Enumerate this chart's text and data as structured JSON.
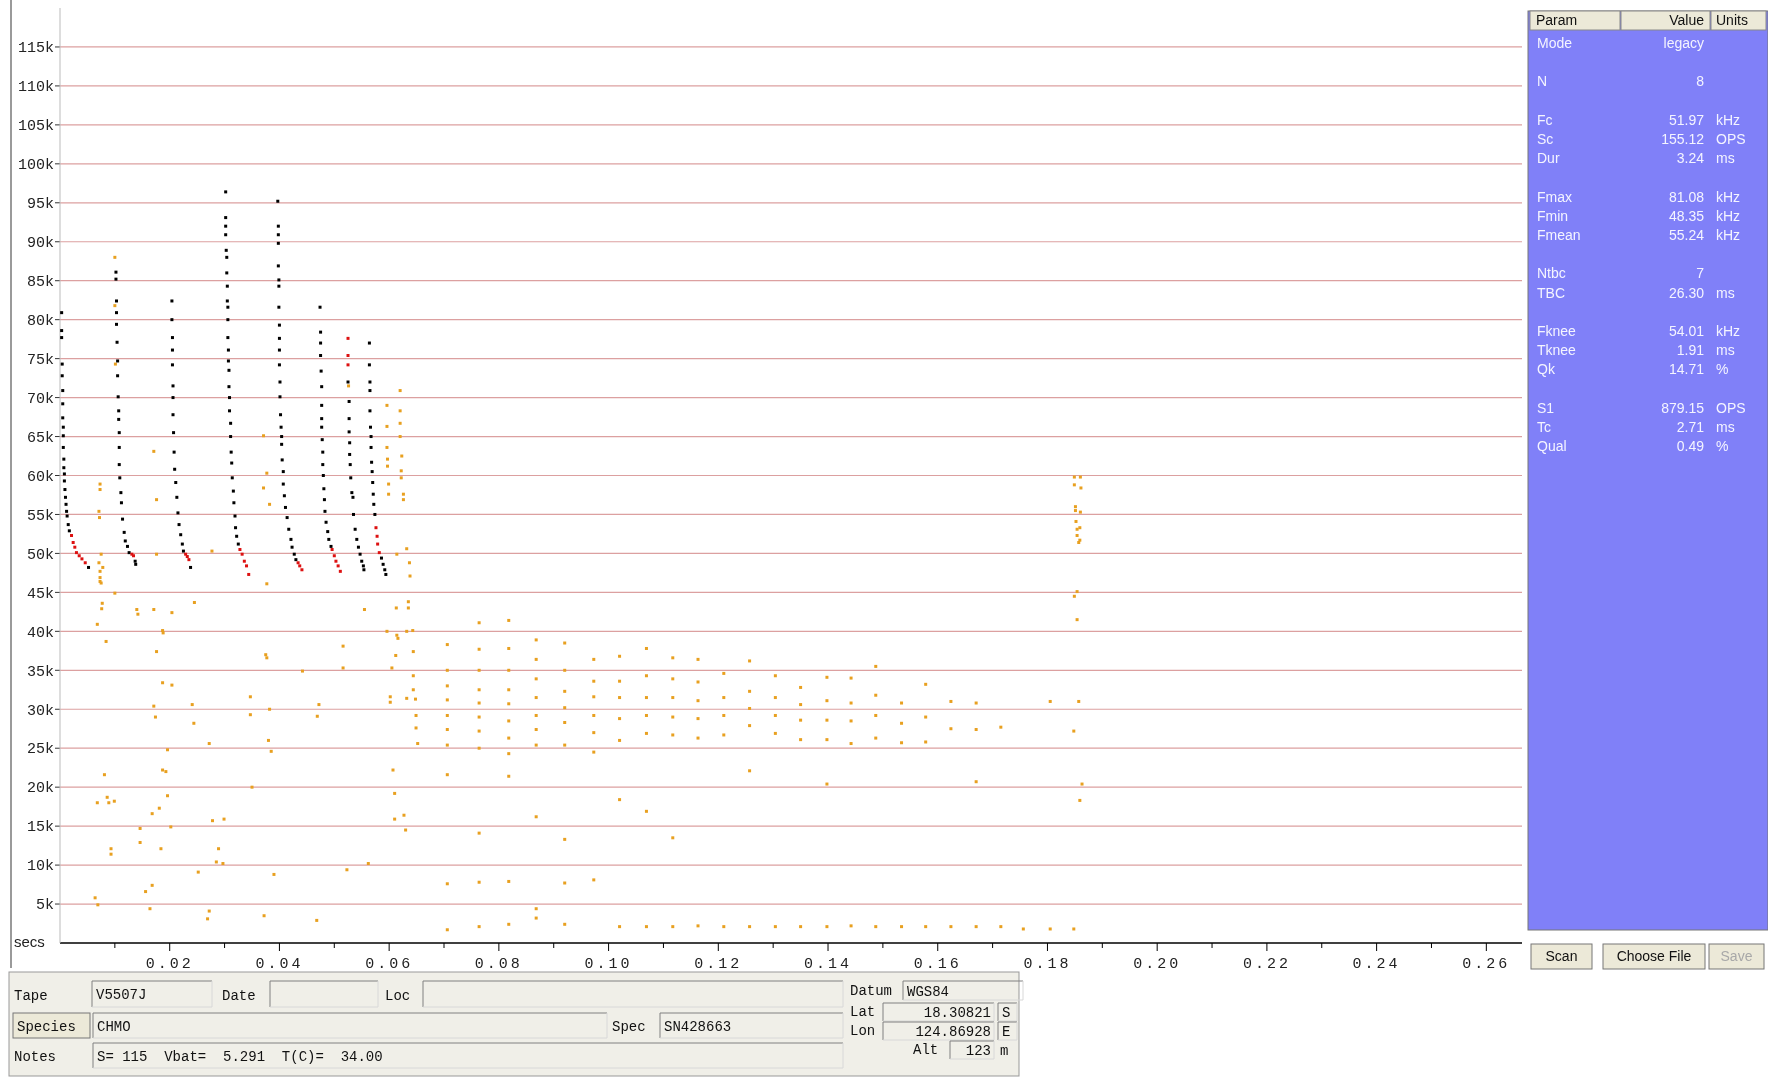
{
  "chart_data": [
    {
      "type": "scatter",
      "xlabel": "secs",
      "xlim": [
        0,
        0.2665
      ],
      "ylim": [
        0,
        120000
      ],
      "marker": "square",
      "grid": "y",
      "xticks": [
        {
          "value": 0.01,
          "label": null
        },
        {
          "value": 0.02,
          "label": "0.02"
        },
        {
          "value": 0.03,
          "label": null
        },
        {
          "value": 0.04,
          "label": "0.04"
        },
        {
          "value": 0.05,
          "label": null
        },
        {
          "value": 0.06,
          "label": "0.06"
        },
        {
          "value": 0.07,
          "label": null
        },
        {
          "value": 0.08,
          "label": "0.08"
        },
        {
          "value": 0.09,
          "label": null
        },
        {
          "value": 0.1,
          "label": "0.10"
        },
        {
          "value": 0.11,
          "label": null
        },
        {
          "value": 0.12,
          "label": "0.12"
        },
        {
          "value": 0.13,
          "label": null
        },
        {
          "value": 0.14,
          "label": "0.14"
        },
        {
          "value": 0.15,
          "label": null
        },
        {
          "value": 0.16,
          "label": "0.16"
        },
        {
          "value": 0.17,
          "label": null
        },
        {
          "value": 0.18,
          "label": "0.18"
        },
        {
          "value": 0.19,
          "label": null
        },
        {
          "value": 0.2,
          "label": "0.20"
        },
        {
          "value": 0.21,
          "label": null
        },
        {
          "value": 0.22,
          "label": "0.22"
        },
        {
          "value": 0.23,
          "label": null
        },
        {
          "value": 0.24,
          "label": "0.24"
        },
        {
          "value": 0.25,
          "label": null
        },
        {
          "value": 0.26,
          "label": "0.26"
        }
      ],
      "yticks": [
        {
          "value": 5000,
          "label": "5k"
        },
        {
          "value": 10000,
          "label": "10k"
        },
        {
          "value": 15000,
          "label": "15k"
        },
        {
          "value": 20000,
          "label": "20k"
        },
        {
          "value": 25000,
          "label": "25k"
        },
        {
          "value": 30000,
          "label": "30k"
        },
        {
          "value": 35000,
          "label": "35k"
        },
        {
          "value": 40000,
          "label": "40k"
        },
        {
          "value": 45000,
          "label": "45k"
        },
        {
          "value": 50000,
          "label": "50k"
        },
        {
          "value": 55000,
          "label": "55k"
        },
        {
          "value": 60000,
          "label": "60k"
        },
        {
          "value": 65000,
          "label": "65k"
        },
        {
          "value": 70000,
          "label": "70k"
        },
        {
          "value": 75000,
          "label": "75k"
        },
        {
          "value": 80000,
          "label": "80k"
        },
        {
          "value": 85000,
          "label": "85k"
        },
        {
          "value": 90000,
          "label": "90k"
        },
        {
          "value": 95000,
          "label": "95k"
        },
        {
          "value": 100000,
          "label": "100k"
        },
        {
          "value": 105000,
          "label": "105k"
        },
        {
          "value": 110000,
          "label": "110k"
        },
        {
          "value": 115000,
          "label": "115k"
        }
      ],
      "series": [
        {
          "color": "#e8a020",
          "x": [
            0.0073,
            0.0073,
            0.0071,
            0.0072,
            0.0075,
            0.0071,
            0.0078,
            0.0073,
            0.0075,
            0.01,
            0.0101,
            0.01,
            0.0171,
            0.0176,
            0.0176,
            0.0277,
            0.0371,
            0.0377,
            0.0371,
            0.0382,
            0.0377,
            0.0526,
            0.0596,
            0.0596,
            0.0596,
            0.0597,
            0.0597,
            0.0599,
            0.0599,
            0.062,
            0.062,
            0.062,
            0.062,
            0.0623,
            0.0622,
            0.0622,
            0.0626,
            0.0626,
            0.0632,
            0.0614,
            0.0637,
            0.0638,
            0.0073,
            0.0073,
            0.01,
            0.0245,
            0.0077,
            0.0076,
            0.014,
            0.0142,
            0.0171,
            0.0204,
            0.0068,
            0.0084,
            0.0187,
            0.0188,
            0.0176,
            0.0375,
            0.0377,
            0.0442,
            0.0555,
            0.0613,
            0.0635,
            0.0635,
            0.0596,
            0.0614,
            0.0616,
            0.0632,
            0.0643,
            0.0516,
            0.0612,
            0.0644,
            0.0516,
            0.0605,
            0.0644,
            0.0644,
            0.0602,
            0.0602,
            0.0632,
            0.0648,
            0.0649,
            0.0649,
            0.0652,
            0.0187,
            0.0204,
            0.0347,
            0.0347,
            0.0171,
            0.0174,
            0.0241,
            0.0244,
            0.0382,
            0.0472,
            0.0469,
            0.0272,
            0.0196,
            0.038,
            0.0385,
            0.0081,
            0.0187,
            0.0193,
            0.035,
            0.0607,
            0.061,
            0.0068,
            0.0086,
            0.0089,
            0.0099,
            0.0196,
            0.0181,
            0.0168,
            0.061,
            0.0627,
            0.063,
            0.0278,
            0.0299,
            0.0146,
            0.0202,
            0.0093,
            0.0093,
            0.0146,
            0.0184,
            0.0289,
            0.0285,
            0.0297,
            0.0562,
            0.0252,
            0.0523,
            0.039,
            0.0064,
            0.0069,
            0.0156,
            0.0168,
            0.0164,
            0.0272,
            0.0269,
            0.0372,
            0.0468,
            0.0706,
            0.0706,
            0.0706,
            0.0706,
            0.0706,
            0.0706,
            0.0706,
            0.0706,
            0.0706,
            0.0706,
            0.0764,
            0.0764,
            0.0764,
            0.0764,
            0.0764,
            0.0764,
            0.0764,
            0.0764,
            0.0764,
            0.0764,
            0.0764,
            0.0818,
            0.0818,
            0.0818,
            0.0818,
            0.0818,
            0.0818,
            0.0818,
            0.0818,
            0.0818,
            0.0818,
            0.0818,
            0.0868,
            0.0868,
            0.0868,
            0.0868,
            0.0868,
            0.0868,
            0.0868,
            0.0868,
            0.0868,
            0.0868,
            0.092,
            0.092,
            0.092,
            0.092,
            0.092,
            0.092,
            0.092,
            0.092,
            0.092,
            0.0973,
            0.0973,
            0.0973,
            0.0973,
            0.0973,
            0.0973,
            0.0973,
            0.102,
            0.102,
            0.102,
            0.102,
            0.102,
            0.102,
            0.102,
            0.1069,
            0.1069,
            0.1069,
            0.1069,
            0.1069,
            0.1069,
            0.1069,
            0.1117,
            0.1117,
            0.1117,
            0.1117,
            0.1117,
            0.1117,
            0.1117,
            0.1163,
            0.1163,
            0.1163,
            0.1163,
            0.1163,
            0.1163,
            0.121,
            0.121,
            0.121,
            0.121,
            0.121,
            0.1257,
            0.1257,
            0.1257,
            0.1257,
            0.1257,
            0.1257,
            0.1304,
            0.1304,
            0.1304,
            0.1304,
            0.1304,
            0.135,
            0.135,
            0.135,
            0.135,
            0.135,
            0.1398,
            0.1398,
            0.1398,
            0.1398,
            0.1398,
            0.1398,
            0.1442,
            0.1442,
            0.1442,
            0.1442,
            0.1442,
            0.1487,
            0.1487,
            0.1487,
            0.1487,
            0.1487,
            0.1534,
            0.1534,
            0.1534,
            0.1534,
            0.1578,
            0.1578,
            0.1578,
            0.1578,
            0.1624,
            0.1624,
            0.1624,
            0.167,
            0.167,
            0.167,
            0.167,
            0.1715,
            0.1715,
            0.1849,
            0.1849,
            0.1851,
            0.1851,
            0.1852,
            0.1854,
            0.1854,
            0.1857,
            0.186,
            0.1861,
            0.186,
            0.1859,
            0.1859,
            0.1854,
            0.1849,
            0.1854,
            0.1857,
            0.1805,
            0.1848,
            0.1863,
            0.1859,
            0.1805,
            0.1848,
            0.1756
          ],
          "values": [
            58900,
            58200,
            55400,
            54600,
            49900,
            48800,
            48200,
            46900,
            46200,
            88000,
            74300,
            81800,
            63100,
            56900,
            49900,
            50300,
            65100,
            60300,
            58400,
            56300,
            46100,
            71500,
            69000,
            66300,
            63600,
            62100,
            61200,
            58900,
            57600,
            70900,
            68300,
            66700,
            65000,
            62500,
            60600,
            59700,
            57600,
            56900,
            50600,
            49900,
            48800,
            47100,
            47700,
            46400,
            44900,
            43700,
            43600,
            42900,
            42800,
            42200,
            42800,
            42400,
            40900,
            38700,
            40100,
            39800,
            37400,
            37000,
            36600,
            34900,
            42800,
            43000,
            43800,
            43000,
            40000,
            39500,
            39100,
            40000,
            40100,
            38100,
            36900,
            37400,
            35300,
            35300,
            34300,
            32500,
            31600,
            30900,
            31400,
            31300,
            29200,
            27600,
            25600,
            33400,
            33100,
            31600,
            29300,
            30400,
            29000,
            30600,
            28200,
            30000,
            30600,
            29100,
            25600,
            24800,
            26000,
            24600,
            21600,
            22200,
            22000,
            20000,
            22200,
            19200,
            18000,
            18700,
            18000,
            18200,
            18900,
            17300,
            16600,
            15900,
            16400,
            14500,
            15700,
            15900,
            14700,
            14900,
            12100,
            11400,
            12900,
            12100,
            12100,
            10400,
            10200,
            10200,
            9100,
            9400,
            8800,
            5800,
            4900,
            6600,
            7400,
            4400,
            4100,
            3100,
            3500,
            2900,
            38300,
            35000,
            33000,
            31200,
            29200,
            27400,
            25400,
            21600,
            7600,
            1700,
            41100,
            37700,
            35000,
            32500,
            30800,
            29000,
            27200,
            25000,
            14100,
            7800,
            2100,
            41400,
            37800,
            35000,
            32500,
            30700,
            28500,
            26300,
            24300,
            21400,
            7900,
            2400,
            38900,
            36400,
            33900,
            31500,
            29200,
            27400,
            25400,
            16200,
            4400,
            3200,
            38500,
            35000,
            32300,
            30200,
            28300,
            25400,
            13300,
            7700,
            2400,
            36400,
            33600,
            31600,
            29200,
            27000,
            24500,
            8100,
            36800,
            33600,
            31500,
            28800,
            26000,
            18400,
            2100,
            37800,
            34300,
            31500,
            29200,
            26900,
            16900,
            2100,
            36600,
            33900,
            31500,
            29000,
            26700,
            13500,
            2100,
            36400,
            33500,
            31100,
            28800,
            26300,
            2200,
            34600,
            31500,
            29200,
            26700,
            2100,
            36200,
            32300,
            30100,
            27900,
            22100,
            2100,
            34300,
            31500,
            29200,
            26900,
            2100,
            32800,
            30600,
            28600,
            26100,
            2100,
            34100,
            31100,
            28600,
            26100,
            20400,
            2100,
            34000,
            30800,
            28500,
            25600,
            2200,
            35500,
            31800,
            29200,
            26300,
            2100,
            30800,
            28200,
            25700,
            2100,
            33200,
            29000,
            25800,
            2100,
            31000,
            27500,
            2100,
            30800,
            27400,
            20700,
            2100,
            27700,
            2100,
            59800,
            58800,
            56000,
            55500,
            54100,
            53100,
            52300,
            51400,
            59800,
            58400,
            55300,
            53300,
            51700,
            45100,
            44500,
            41500,
            31000,
            31000,
            27200,
            20400,
            18300,
            1800,
            1800,
            1800
          ]
        },
        {
          "color": "#000000",
          "x": [
            0.0003,
            0.0003,
            0.0003,
            0.0004,
            0.0004,
            0.0005,
            0.0005,
            0.0005,
            0.0006,
            0.0006,
            0.0006,
            0.0007,
            0.0007,
            0.0008,
            0.0008,
            0.0009,
            0.001,
            0.0011,
            0.0012,
            0.0013,
            0.0015,
            0.0017,
            0.0052,
            0.0102,
            0.0102,
            0.0103,
            0.0103,
            0.0103,
            0.0104,
            0.0105,
            0.0105,
            0.0106,
            0.0107,
            0.0107,
            0.0108,
            0.0108,
            0.0108,
            0.0109,
            0.0111,
            0.0112,
            0.0114,
            0.0117,
            0.0119,
            0.0123,
            0.0126,
            0.0137,
            0.0138,
            0.0204,
            0.0204,
            0.0205,
            0.0205,
            0.0205,
            0.0206,
            0.0206,
            0.0206,
            0.0207,
            0.0208,
            0.0209,
            0.0211,
            0.0213,
            0.0215,
            0.0217,
            0.022,
            0.0223,
            0.0225,
            0.0238,
            0.0302,
            0.0302,
            0.0302,
            0.0302,
            0.0303,
            0.0304,
            0.0304,
            0.0305,
            0.0305,
            0.0306,
            0.0306,
            0.0306,
            0.0307,
            0.0307,
            0.0308,
            0.0308,
            0.0309,
            0.0309,
            0.0311,
            0.0311,
            0.0312,
            0.0313,
            0.0314,
            0.0316,
            0.0317,
            0.0319,
            0.032,
            0.0322,
            0.0325,
            0.0397,
            0.0398,
            0.0398,
            0.0398,
            0.0398,
            0.0399,
            0.0399,
            0.0399,
            0.04,
            0.04,
            0.04,
            0.04,
            0.0401,
            0.0401,
            0.0402,
            0.0403,
            0.0404,
            0.0404,
            0.0405,
            0.0407,
            0.0407,
            0.0409,
            0.0411,
            0.0414,
            0.0417,
            0.0421,
            0.0423,
            0.0427,
            0.043,
            0.0474,
            0.0475,
            0.0475,
            0.0475,
            0.0476,
            0.0477,
            0.0477,
            0.0477,
            0.0477,
            0.0478,
            0.0479,
            0.0479,
            0.048,
            0.0481,
            0.0482,
            0.0483,
            0.0485,
            0.0488,
            0.049,
            0.0494,
            0.0525,
            0.0527,
            0.0527,
            0.0527,
            0.0528,
            0.0528,
            0.0529,
            0.053,
            0.0532,
            0.0534,
            0.0535,
            0.0538,
            0.0541,
            0.0544,
            0.0547,
            0.055,
            0.0553,
            0.0554,
            0.0564,
            0.0564,
            0.0565,
            0.0565,
            0.0565,
            0.0566,
            0.0567,
            0.0567,
            0.0568,
            0.0569,
            0.057,
            0.0571,
            0.0572,
            0.0574,
            0.0586,
            0.0589,
            0.0592,
            0.0594
          ],
          "values": [
            80900,
            78600,
            77700,
            74300,
            72800,
            70900,
            69200,
            67400,
            66200,
            65100,
            63600,
            62100,
            61000,
            60200,
            59300,
            58200,
            57200,
            56300,
            55400,
            54800,
            53700,
            52900,
            48200,
            86100,
            85200,
            82400,
            80900,
            79400,
            77100,
            74700,
            72800,
            70100,
            68300,
            67200,
            65500,
            63600,
            61400,
            59700,
            57800,
            56500,
            54400,
            52700,
            51600,
            50900,
            50100,
            49000,
            48600,
            82400,
            80000,
            77700,
            76100,
            74200,
            71500,
            70000,
            67800,
            65500,
            63000,
            60800,
            59100,
            57200,
            55200,
            53700,
            52400,
            51200,
            50300,
            48200,
            96400,
            93100,
            92000,
            90900,
            88900,
            88000,
            86000,
            84300,
            82400,
            81600,
            80000,
            77700,
            76100,
            74700,
            73500,
            71400,
            70000,
            68300,
            66700,
            65000,
            63000,
            61600,
            59700,
            58000,
            56500,
            54800,
            53300,
            52200,
            51200,
            95200,
            92000,
            90900,
            89800,
            86900,
            85100,
            84300,
            81600,
            79300,
            77600,
            76100,
            74200,
            72000,
            70100,
            67800,
            66200,
            65000,
            64000,
            62000,
            60500,
            58900,
            57400,
            55900,
            54600,
            53100,
            51800,
            50800,
            49900,
            49200,
            81600,
            78400,
            77000,
            75400,
            73400,
            71400,
            69000,
            67300,
            66200,
            64600,
            63000,
            61400,
            60000,
            58300,
            56900,
            55400,
            54000,
            52800,
            51800,
            50900,
            72000,
            69500,
            67300,
            65600,
            64200,
            62700,
            61400,
            59700,
            57800,
            57200,
            55000,
            53100,
            51800,
            50800,
            49900,
            49000,
            48400,
            47900,
            77000,
            74200,
            72000,
            70900,
            68300,
            66200,
            65000,
            63600,
            61700,
            60500,
            59100,
            57600,
            56300,
            55000,
            49400,
            48600,
            47900,
            47300
          ]
        },
        {
          "color": "#dd1111",
          "x": [
            0.0021,
            0.0024,
            0.0027,
            0.003,
            0.0035,
            0.004,
            0.0046,
            0.0131,
            0.0134,
            0.0229,
            0.0232,
            0.0235,
            0.0328,
            0.0332,
            0.0336,
            0.034,
            0.0344,
            0.0434,
            0.0437,
            0.0441,
            0.0496,
            0.05,
            0.0503,
            0.0507,
            0.0511,
            0.0525,
            0.0525,
            0.0525,
            0.0576,
            0.0578,
            0.0579,
            0.0582
          ],
          "values": [
            52300,
            51400,
            50800,
            50100,
            49700,
            49300,
            48800,
            49900,
            49700,
            49900,
            49600,
            49200,
            50500,
            49900,
            49000,
            48400,
            47300,
            48800,
            48400,
            47900,
            50500,
            49700,
            49000,
            48400,
            47700,
            77600,
            75400,
            74200,
            53300,
            52200,
            51200,
            50100
          ]
        }
      ]
    },
    {
      "type": "other",
      "categories": [
        "Param",
        "Value",
        "Units"
      ],
      "y_categories": [
        "Mode",
        null,
        "N",
        null,
        "Fc",
        "Sc",
        "Dur",
        null,
        "Fmax",
        "Fmin",
        "Fmean",
        null,
        "Ntbc",
        "TBC",
        null,
        "Fknee",
        "Tknee",
        "Qk",
        null,
        "S1",
        "Tc",
        "Qual"
      ],
      "cell_labels": [
        [
          "legacy",
          null
        ],
        null,
        [
          "8",
          null
        ],
        null,
        [
          "51.97",
          "kHz"
        ],
        [
          "155.12",
          "OPS"
        ],
        [
          "3.24",
          "ms"
        ],
        null,
        [
          "81.08",
          "kHz"
        ],
        [
          "48.35",
          "kHz"
        ],
        [
          "55.24",
          "kHz"
        ],
        null,
        [
          "7",
          null
        ],
        [
          "26.30",
          "ms"
        ],
        null,
        [
          "54.01",
          "kHz"
        ],
        [
          "1.91",
          "ms"
        ],
        [
          "14.71",
          "%"
        ],
        null,
        [
          "879.15",
          "OPS"
        ],
        [
          "2.71",
          "ms"
        ],
        [
          "0.49",
          "%"
        ]
      ],
      "annotations": [
        "Scan",
        "Choose File",
        "Save"
      ]
    },
    {
      "type": "other",
      "categories": [
        "Tape",
        "Date",
        "Loc",
        "Species",
        "Spec",
        "Notes",
        "Datum",
        "Lat",
        "Lon",
        "Alt"
      ],
      "cell_labels": [
        [
          "V5507J"
        ],
        [
          null
        ],
        [
          null
        ],
        [
          "CHMO"
        ],
        [
          "SN428663"
        ],
        [
          "S= 115  Vbat=  5.291  T(C)=  34.00"
        ],
        [
          "WGS84"
        ],
        [
          "18.30821",
          "S"
        ],
        [
          "124.86928",
          "E"
        ],
        [
          "123",
          "m"
        ]
      ]
    }
  ]
}
